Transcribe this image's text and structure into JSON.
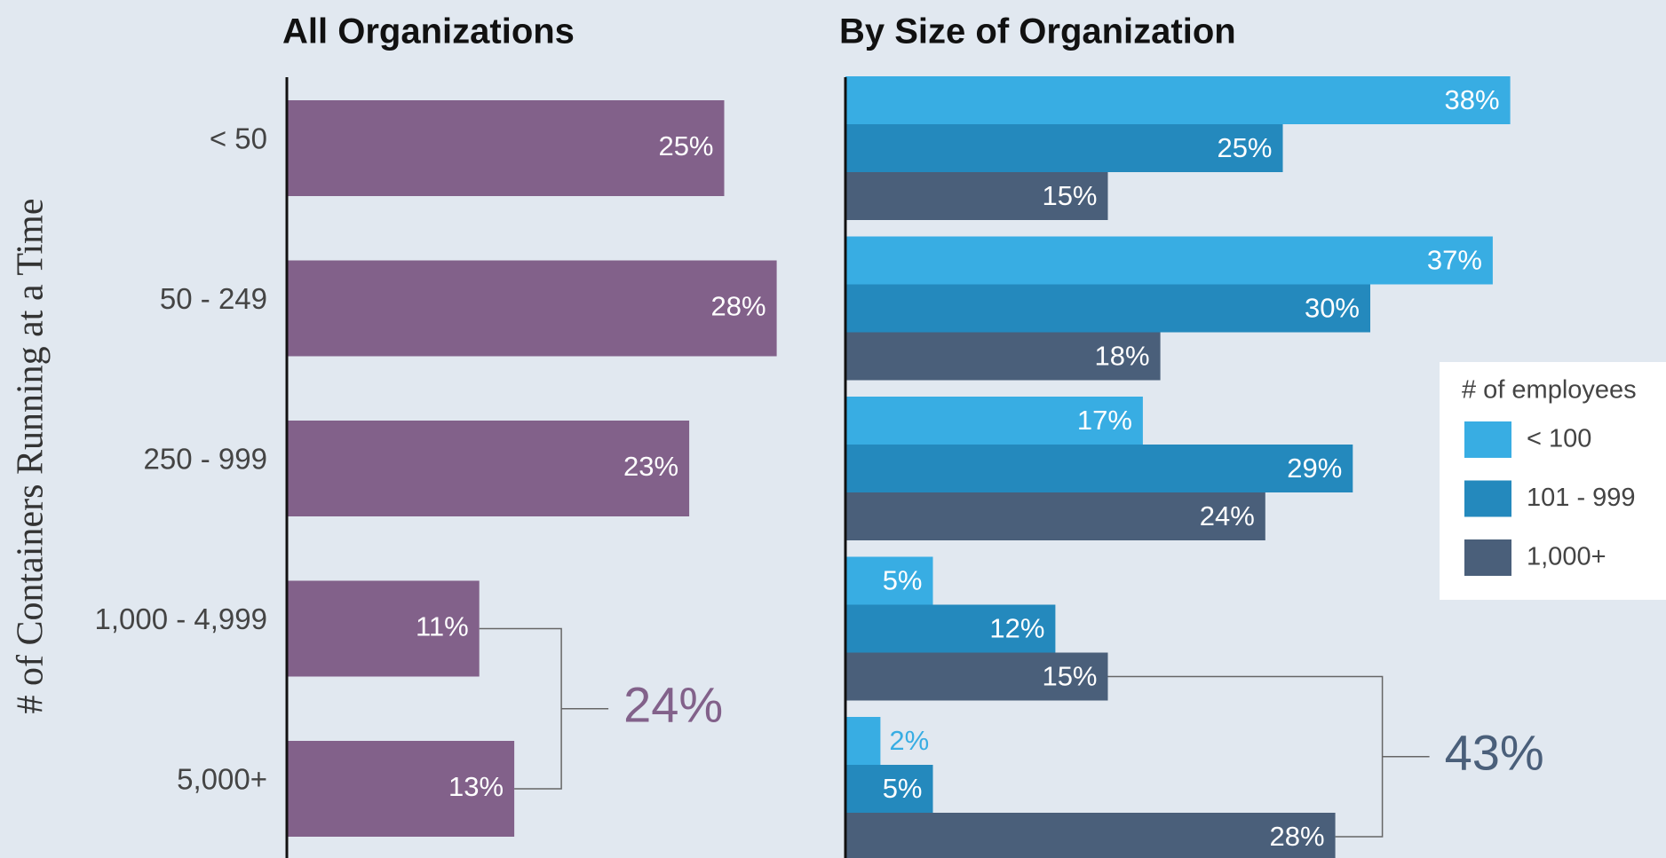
{
  "chart_data": [
    {
      "type": "bar",
      "orientation": "horizontal",
      "title": "All Organizations",
      "y_label": "# of Containers Running at a Time",
      "categories": [
        "< 50",
        "50 - 249",
        "250 - 999",
        "1,000 - 4,999",
        "5,000+"
      ],
      "values": [
        25,
        28,
        23,
        11,
        13
      ],
      "value_labels": [
        "25%",
        "28%",
        "23%",
        "11%",
        "13%"
      ],
      "color": "#82618a",
      "xlim": [
        0,
        40
      ],
      "annotation": "24%"
    },
    {
      "type": "grouped_bar",
      "orientation": "horizontal",
      "title": "By Size of Organization",
      "legend_title": "# of employees",
      "legend": "right",
      "series": [
        {
          "name": "< 100",
          "color": "#38ade3",
          "values": [
            38,
            37,
            17,
            5,
            2
          ],
          "value_labels": [
            "38%",
            "37%",
            "17%",
            "5%",
            "2%"
          ]
        },
        {
          "name": "101 - 999",
          "color": "#2489bd",
          "values": [
            25,
            30,
            29,
            12,
            5
          ],
          "value_labels": [
            "25%",
            "30%",
            "29%",
            "12%",
            "5%"
          ]
        },
        {
          "name": "1,000+",
          "color": "#4a5f7a",
          "values": [
            15,
            18,
            24,
            15,
            28
          ],
          "value_labels": [
            "15%",
            "18%",
            "24%",
            "15%",
            "28%"
          ]
        }
      ],
      "xlim": [
        0,
        40
      ],
      "annotation": "43%"
    }
  ]
}
